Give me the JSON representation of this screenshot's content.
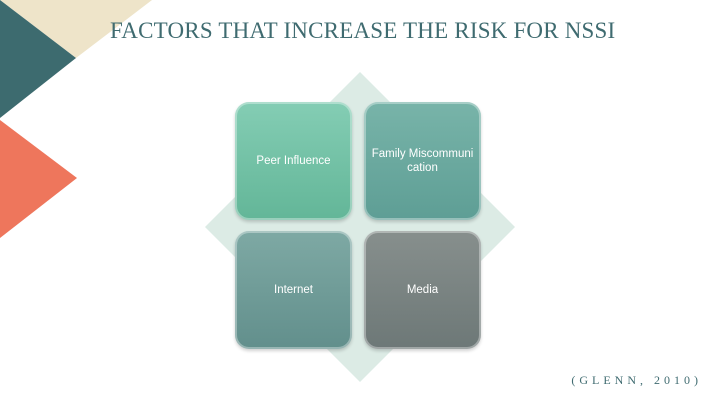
{
  "slide": {
    "title": "FACTORS THAT INCREASE THE RISK FOR NSSI",
    "citation": "(GLENN, 2010)"
  },
  "diagram": {
    "items": [
      {
        "label": "Peer Influence"
      },
      {
        "label": "Family Miscommunication"
      },
      {
        "label": "Internet"
      },
      {
        "label": "Media"
      }
    ]
  },
  "colors": {
    "title": "#3f6b70",
    "teal_dark": "#3d6b6f",
    "cream": "#eee4c9",
    "coral": "#ee765c",
    "diamond": "#dcebe5",
    "tile_1": "#6fc0a3",
    "tile_2": "#68a89e",
    "tile_3": "#6d9893",
    "tile_4": "#7a8483"
  }
}
